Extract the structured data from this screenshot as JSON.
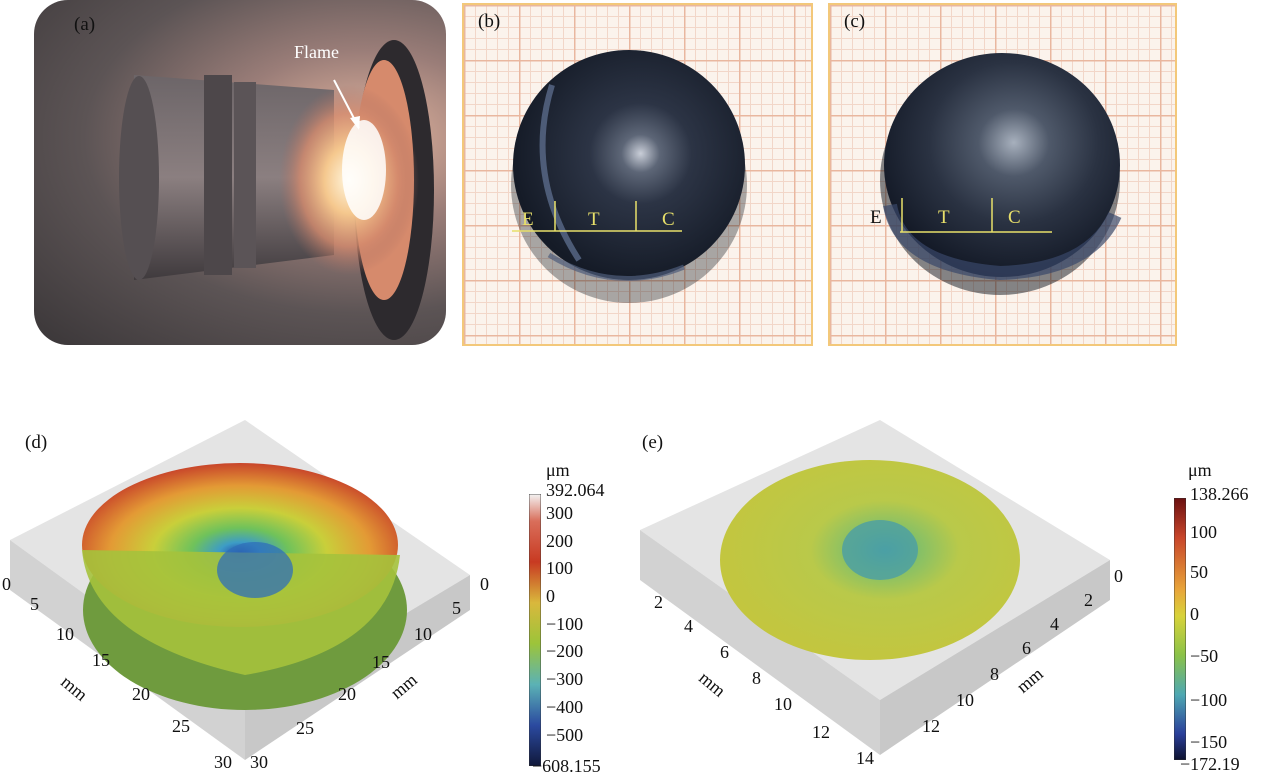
{
  "panels": {
    "a": {
      "label": "(a)",
      "annotation": "Flame"
    },
    "b": {
      "label": "(b)",
      "zones": [
        "E",
        "T",
        "C"
      ]
    },
    "c": {
      "label": "(c)",
      "zones": [
        "E",
        "T",
        "C"
      ]
    },
    "d": {
      "label": "(d)",
      "axis_x_ticks": [
        "0",
        "5",
        "10",
        "15",
        "20",
        "25",
        "30"
      ],
      "axis_y_ticks": [
        "0",
        "5",
        "10",
        "15",
        "20",
        "25",
        "30"
      ],
      "axis_unit_x": "mm",
      "axis_unit_y": "mm",
      "colorbar": {
        "unit": "μm",
        "max": "392.064",
        "min": "−608.155",
        "ticks": [
          "300",
          "200",
          "100",
          "0",
          "−100",
          "−200",
          "−300",
          "−400",
          "−500"
        ]
      }
    },
    "e": {
      "label": "(e)",
      "axis_x_ticks": [
        "2",
        "4",
        "6",
        "8",
        "10",
        "12",
        "14"
      ],
      "axis_y_ticks": [
        "0",
        "2",
        "4",
        "6",
        "8",
        "10",
        "12"
      ],
      "axis_unit_x": "mm",
      "axis_unit_y": "mm",
      "colorbar": {
        "unit": "μm",
        "max": "138.266",
        "min": "−172.19",
        "ticks": [
          "100",
          "50",
          "0",
          "−50",
          "−100",
          "−150"
        ]
      }
    }
  },
  "colors": {
    "grid_border": "#f3c87a",
    "sample_dark": "#1b2233",
    "zone_line": "#e8e06a"
  }
}
